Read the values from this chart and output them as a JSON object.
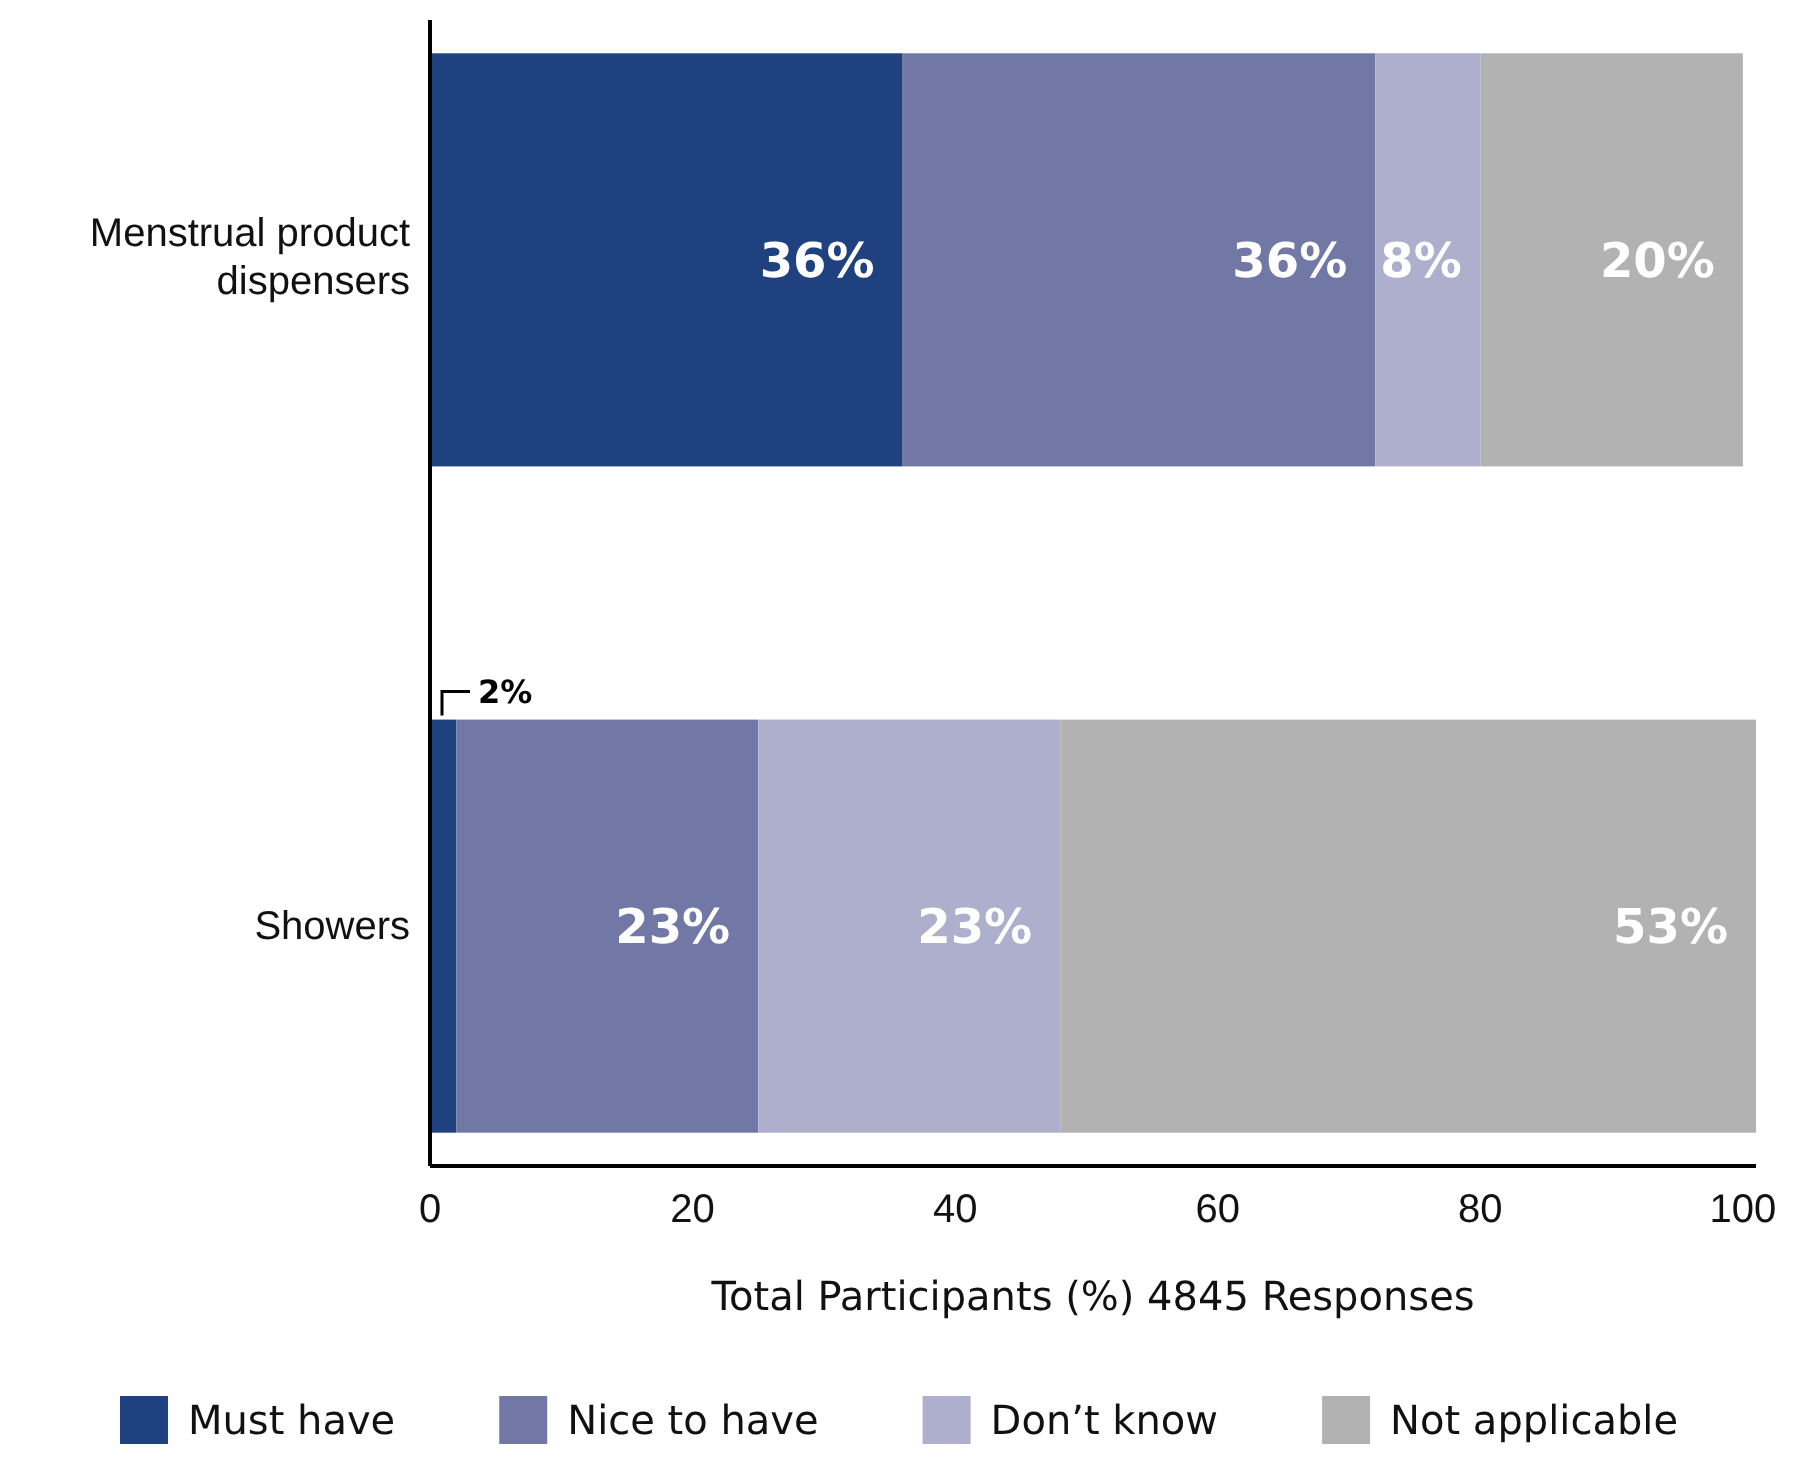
{
  "chart_data": {
    "type": "bar",
    "orientation": "horizontal",
    "stacked": true,
    "categories": [
      "Menstrual product dispensers",
      "Showers"
    ],
    "series": [
      {
        "name": "Must have",
        "color": "#1f4180",
        "values": [
          36,
          2
        ],
        "value_labels": [
          "36%",
          "2%"
        ]
      },
      {
        "name": "Nice to have",
        "color": "#7278a5",
        "values": [
          36,
          23
        ],
        "value_labels": [
          "36%",
          "23%"
        ]
      },
      {
        "name": "Don’t know",
        "color": "#aeafcc",
        "values": [
          8,
          23
        ],
        "value_labels": [
          "8%",
          "23%"
        ]
      },
      {
        "name": "Not applicable",
        "color": "#b2b2b2",
        "values": [
          20,
          53
        ],
        "value_labels": [
          "20%",
          "53%"
        ]
      }
    ],
    "xlim": [
      0,
      101
    ],
    "xticks": [
      0,
      20,
      40,
      60,
      80,
      100
    ],
    "xlabel": "Total Participants (%) 4845 Responses",
    "grid": false,
    "legend": "bottom"
  }
}
